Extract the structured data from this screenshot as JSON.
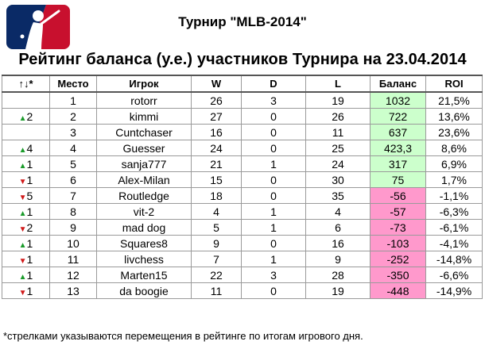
{
  "title": "Турнир \"MLB-2014\"",
  "subtitle": "Рейтинг баланса (у.е.) участников Турнира на 23.04.2014",
  "columns": [
    "↑↓*",
    "Место",
    "Игрок",
    "W",
    "D",
    "L",
    "Баланс",
    "ROI"
  ],
  "colors": {
    "positive_bg": "#ccffcc",
    "negative_bg": "#ff99cc",
    "up": "#1a9b2a",
    "down": "#d01818"
  },
  "rows": [
    {
      "dir": "",
      "shift": "",
      "place": "1",
      "player": "rotorr",
      "w": "26",
      "d": "3",
      "l": "19",
      "balance": "1032",
      "roi": "21,5%",
      "sign": "pos"
    },
    {
      "dir": "up",
      "shift": "2",
      "place": "2",
      "player": "kimmi",
      "w": "27",
      "d": "0",
      "l": "26",
      "balance": "722",
      "roi": "13,6%",
      "sign": "pos"
    },
    {
      "dir": "",
      "shift": "",
      "place": "3",
      "player": "Cuntchaser",
      "w": "16",
      "d": "0",
      "l": "11",
      "balance": "637",
      "roi": "23,6%",
      "sign": "pos"
    },
    {
      "dir": "up",
      "shift": "4",
      "place": "4",
      "player": "Guesser",
      "w": "24",
      "d": "0",
      "l": "25",
      "balance": "423,3",
      "roi": "8,6%",
      "sign": "pos"
    },
    {
      "dir": "up",
      "shift": "1",
      "place": "5",
      "player": "sanja777",
      "w": "21",
      "d": "1",
      "l": "24",
      "balance": "317",
      "roi": "6,9%",
      "sign": "pos"
    },
    {
      "dir": "down",
      "shift": "1",
      "place": "6",
      "player": "Alex-Milan",
      "w": "15",
      "d": "0",
      "l": "30",
      "balance": "75",
      "roi": "1,7%",
      "sign": "pos"
    },
    {
      "dir": "down",
      "shift": "5",
      "place": "7",
      "player": "Routledge",
      "w": "18",
      "d": "0",
      "l": "35",
      "balance": "-56",
      "roi": "-1,1%",
      "sign": "neg"
    },
    {
      "dir": "up",
      "shift": "1",
      "place": "8",
      "player": "vit-2",
      "w": "4",
      "d": "1",
      "l": "4",
      "balance": "-57",
      "roi": "-6,3%",
      "sign": "neg"
    },
    {
      "dir": "down",
      "shift": "2",
      "place": "9",
      "player": "mad dog",
      "w": "5",
      "d": "1",
      "l": "6",
      "balance": "-73",
      "roi": "-6,1%",
      "sign": "neg"
    },
    {
      "dir": "up",
      "shift": "1",
      "place": "10",
      "player": "Squares8",
      "w": "9",
      "d": "0",
      "l": "16",
      "balance": "-103",
      "roi": "-4,1%",
      "sign": "neg"
    },
    {
      "dir": "down",
      "shift": "1",
      "place": "11",
      "player": "livchess",
      "w": "7",
      "d": "1",
      "l": "9",
      "balance": "-252",
      "roi": "-14,8%",
      "sign": "neg"
    },
    {
      "dir": "up",
      "shift": "1",
      "place": "12",
      "player": "Marten15",
      "w": "22",
      "d": "3",
      "l": "28",
      "balance": "-350",
      "roi": "-6,6%",
      "sign": "neg"
    },
    {
      "dir": "down",
      "shift": "1",
      "place": "13",
      "player": "da boogie",
      "w": "11",
      "d": "0",
      "l": "19",
      "balance": "-448",
      "roi": "-14,9%",
      "sign": "neg"
    }
  ],
  "footnote": "*стрелками указываются перемещения в рейтинге по итогам игрового дня."
}
